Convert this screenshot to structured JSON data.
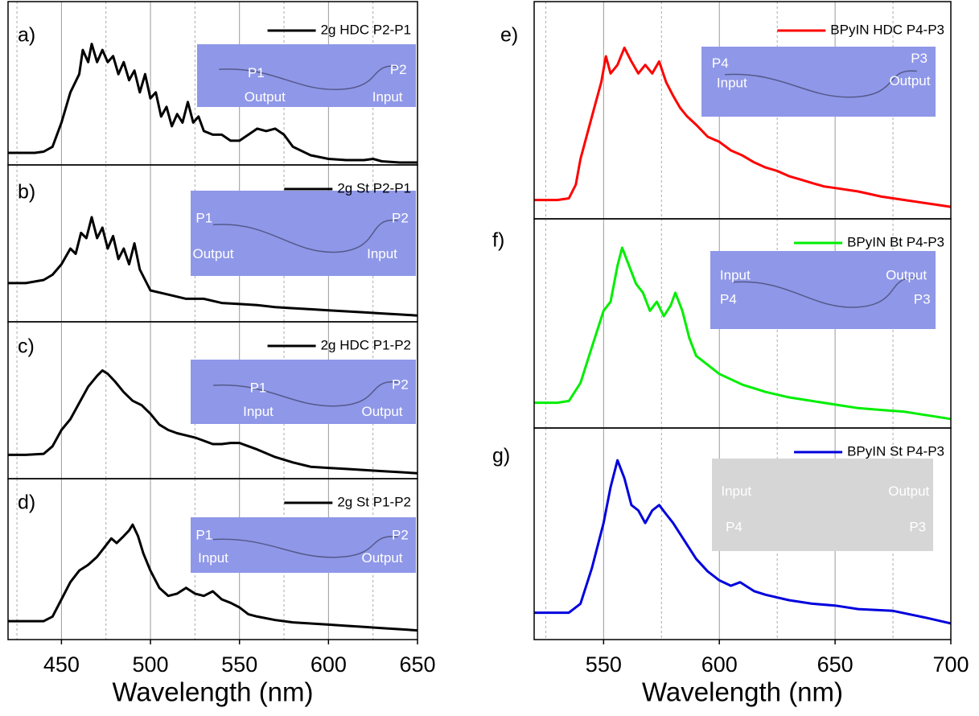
{
  "chart_data": [
    {
      "type": "line",
      "panel_label": "a)",
      "xlim": [
        420,
        650
      ],
      "ylim": [
        0,
        1.35
      ],
      "xticks": [
        450,
        500,
        550,
        600,
        650
      ],
      "minor_xticks": [
        425,
        475,
        525,
        575,
        625
      ],
      "grid": true,
      "x": [
        420,
        425,
        430,
        435,
        440,
        445,
        450,
        455,
        460,
        462,
        465,
        467,
        470,
        473,
        476,
        479,
        482,
        485,
        488,
        491,
        494,
        497,
        500,
        503,
        506,
        509,
        512,
        515,
        518,
        521,
        524,
        527,
        530,
        535,
        540,
        545,
        550,
        555,
        560,
        565,
        570,
        575,
        580,
        590,
        600,
        610,
        620,
        625,
        630,
        640,
        650
      ],
      "series": [
        {
          "name": "2g HDC P2-P1",
          "color": "#000000",
          "values": [
            0.1,
            0.1,
            0.1,
            0.1,
            0.11,
            0.15,
            0.35,
            0.6,
            0.75,
            0.95,
            0.85,
            1.0,
            0.85,
            0.95,
            0.85,
            0.9,
            0.75,
            0.85,
            0.7,
            0.78,
            0.6,
            0.75,
            0.55,
            0.6,
            0.4,
            0.48,
            0.32,
            0.42,
            0.35,
            0.52,
            0.35,
            0.4,
            0.28,
            0.25,
            0.25,
            0.2,
            0.2,
            0.25,
            0.3,
            0.28,
            0.3,
            0.25,
            0.15,
            0.08,
            0.05,
            0.04,
            0.04,
            0.05,
            0.03,
            0.02,
            0.02
          ]
        }
      ],
      "inset": {
        "color": "#8f97e8",
        "labels": [
          "P1",
          "P2",
          "Output",
          "Input"
        ]
      }
    },
    {
      "type": "line",
      "panel_label": "b)",
      "xlim": [
        420,
        650
      ],
      "ylim": [
        0,
        1.5
      ],
      "xticks": [
        450,
        500,
        550,
        600,
        650
      ],
      "minor_xticks": [
        425,
        475,
        525,
        575,
        625
      ],
      "grid": true,
      "x": [
        420,
        430,
        440,
        445,
        450,
        455,
        458,
        461,
        464,
        467,
        470,
        473,
        476,
        479,
        482,
        485,
        488,
        491,
        494,
        497,
        500,
        510,
        520,
        530,
        540,
        550,
        560,
        570,
        580,
        590,
        600,
        610,
        620,
        630,
        640,
        650
      ],
      "series": [
        {
          "name": "2g St P2-P1",
          "color": "#000000",
          "values": [
            0.37,
            0.37,
            0.4,
            0.45,
            0.55,
            0.7,
            0.65,
            0.85,
            0.8,
            1.0,
            0.8,
            0.9,
            0.7,
            0.82,
            0.6,
            0.7,
            0.55,
            0.75,
            0.5,
            0.4,
            0.3,
            0.26,
            0.22,
            0.22,
            0.18,
            0.17,
            0.16,
            0.14,
            0.13,
            0.12,
            0.11,
            0.1,
            0.09,
            0.08,
            0.07,
            0.06
          ]
        }
      ],
      "inset": {
        "color": "#8f97e8",
        "labels": [
          "P1",
          "P2",
          "Output",
          "Input"
        ]
      }
    },
    {
      "type": "line",
      "panel_label": "c)",
      "xlim": [
        420,
        650
      ],
      "ylim": [
        0,
        1.45
      ],
      "xticks": [
        450,
        500,
        550,
        600,
        650
      ],
      "minor_xticks": [
        425,
        475,
        525,
        575,
        625
      ],
      "grid": true,
      "x": [
        420,
        430,
        440,
        445,
        450,
        455,
        460,
        465,
        470,
        473,
        476,
        480,
        485,
        490,
        495,
        500,
        505,
        510,
        515,
        520,
        525,
        530,
        535,
        540,
        545,
        550,
        555,
        560,
        570,
        580,
        590,
        600,
        610,
        620,
        630,
        640,
        650
      ],
      "series": [
        {
          "name": "2g HDC P1-P2",
          "color": "#000000",
          "values": [
            0.22,
            0.22,
            0.23,
            0.3,
            0.45,
            0.55,
            0.7,
            0.85,
            0.95,
            1.0,
            0.97,
            0.9,
            0.8,
            0.72,
            0.68,
            0.6,
            0.5,
            0.45,
            0.42,
            0.4,
            0.38,
            0.35,
            0.32,
            0.32,
            0.33,
            0.33,
            0.3,
            0.27,
            0.2,
            0.15,
            0.11,
            0.1,
            0.09,
            0.08,
            0.07,
            0.06,
            0.05
          ]
        }
      ],
      "inset": {
        "color": "#8f97e8",
        "labels": [
          "P1",
          "P2",
          "Input",
          "Output"
        ]
      }
    },
    {
      "type": "line",
      "panel_label": "d)",
      "xlim": [
        420,
        650
      ],
      "ylim": [
        0,
        1.4
      ],
      "xticks": [
        450,
        500,
        550,
        600,
        650
      ],
      "minor_xticks": [
        425,
        475,
        525,
        575,
        625
      ],
      "grid": true,
      "xlabel": "Wavelength (nm)",
      "x": [
        420,
        440,
        445,
        450,
        455,
        460,
        465,
        470,
        475,
        478,
        481,
        485,
        488,
        490,
        493,
        496,
        500,
        505,
        510,
        515,
        520,
        525,
        530,
        535,
        540,
        545,
        550,
        555,
        560,
        570,
        580,
        590,
        600,
        610,
        620,
        630,
        640,
        650
      ],
      "series": [
        {
          "name": "2g St P1-P2",
          "color": "#000000",
          "values": [
            0.16,
            0.16,
            0.2,
            0.35,
            0.5,
            0.6,
            0.65,
            0.72,
            0.82,
            0.88,
            0.84,
            0.9,
            0.95,
            1.0,
            0.9,
            0.75,
            0.6,
            0.45,
            0.38,
            0.4,
            0.45,
            0.4,
            0.38,
            0.42,
            0.35,
            0.32,
            0.28,
            0.22,
            0.2,
            0.17,
            0.15,
            0.14,
            0.13,
            0.12,
            0.11,
            0.1,
            0.09,
            0.08
          ]
        }
      ],
      "inset": {
        "color": "#8f97e8",
        "labels": [
          "P1",
          "P2",
          "Input",
          "Output"
        ]
      }
    },
    {
      "type": "line",
      "panel_label": "e)",
      "xlim": [
        520,
        700
      ],
      "ylim": [
        0,
        1.27
      ],
      "xticks": [
        550,
        600,
        650,
        700
      ],
      "minor_xticks": [
        525,
        575,
        625,
        675
      ],
      "grid": true,
      "x": [
        520,
        530,
        535,
        538,
        540,
        543,
        546,
        549,
        551,
        553,
        556,
        559,
        562,
        565,
        568,
        571,
        574,
        577,
        580,
        583,
        586,
        590,
        595,
        600,
        605,
        610,
        615,
        620,
        625,
        630,
        635,
        640,
        645,
        650,
        660,
        670,
        680,
        690,
        700
      ],
      "series": [
        {
          "name": "BPyIN HDC P4-P3",
          "color": "#ff0000",
          "values": [
            0.11,
            0.11,
            0.12,
            0.2,
            0.35,
            0.5,
            0.65,
            0.8,
            0.95,
            0.85,
            0.9,
            1.0,
            0.92,
            0.85,
            0.9,
            0.85,
            0.92,
            0.8,
            0.72,
            0.65,
            0.6,
            0.55,
            0.48,
            0.45,
            0.4,
            0.37,
            0.33,
            0.3,
            0.28,
            0.25,
            0.23,
            0.21,
            0.19,
            0.18,
            0.16,
            0.13,
            0.11,
            0.09,
            0.07
          ]
        }
      ],
      "inset": {
        "color": "#8f97e8",
        "labels": [
          "P4",
          "Input",
          "P3",
          "Output"
        ]
      }
    },
    {
      "type": "line",
      "panel_label": "f)",
      "xlim": [
        520,
        700
      ],
      "ylim": [
        0,
        1.16
      ],
      "xticks": [
        550,
        600,
        650,
        700
      ],
      "minor_xticks": [
        525,
        575,
        625,
        675
      ],
      "grid": true,
      "x": [
        520,
        530,
        535,
        540,
        545,
        550,
        553,
        556,
        558,
        561,
        564,
        567,
        570,
        573,
        576,
        579,
        581,
        584,
        587,
        590,
        595,
        600,
        610,
        620,
        630,
        640,
        650,
        660,
        670,
        680,
        690,
        700
      ],
      "series": [
        {
          "name": "BPyIN Bt P4-P3",
          "color": "#00ee00",
          "values": [
            0.14,
            0.14,
            0.15,
            0.25,
            0.45,
            0.65,
            0.7,
            0.9,
            1.0,
            0.9,
            0.8,
            0.75,
            0.65,
            0.7,
            0.62,
            0.68,
            0.75,
            0.65,
            0.5,
            0.4,
            0.35,
            0.3,
            0.24,
            0.2,
            0.17,
            0.15,
            0.13,
            0.11,
            0.1,
            0.09,
            0.07,
            0.05
          ]
        }
      ],
      "inset": {
        "color": "#8f97e8",
        "labels": [
          "Input",
          "Output",
          "P4",
          "P3"
        ]
      }
    },
    {
      "type": "line",
      "panel_label": "g)",
      "xlim": [
        520,
        700
      ],
      "ylim": [
        0,
        1.18
      ],
      "xticks": [
        550,
        600,
        650,
        700
      ],
      "minor_xticks": [
        525,
        575,
        625,
        675
      ],
      "grid": true,
      "xlabel": "Wavelength (nm)",
      "x": [
        520,
        535,
        540,
        545,
        550,
        553,
        556,
        559,
        562,
        565,
        568,
        571,
        574,
        577,
        580,
        585,
        590,
        595,
        600,
        605,
        609,
        615,
        620,
        630,
        640,
        650,
        660,
        675,
        690,
        700
      ],
      "series": [
        {
          "name": "BPyIN St P4-P3",
          "color": "#0000dd",
          "values": [
            0.15,
            0.15,
            0.2,
            0.4,
            0.65,
            0.85,
            1.0,
            0.9,
            0.75,
            0.72,
            0.65,
            0.72,
            0.75,
            0.7,
            0.65,
            0.55,
            0.45,
            0.38,
            0.33,
            0.3,
            0.32,
            0.27,
            0.25,
            0.22,
            0.2,
            0.19,
            0.17,
            0.16,
            0.12,
            0.09
          ]
        }
      ],
      "inset": {
        "color": "#d6d6d6",
        "labels": [
          "Input",
          "Output",
          "P4",
          "P3"
        ]
      }
    }
  ]
}
